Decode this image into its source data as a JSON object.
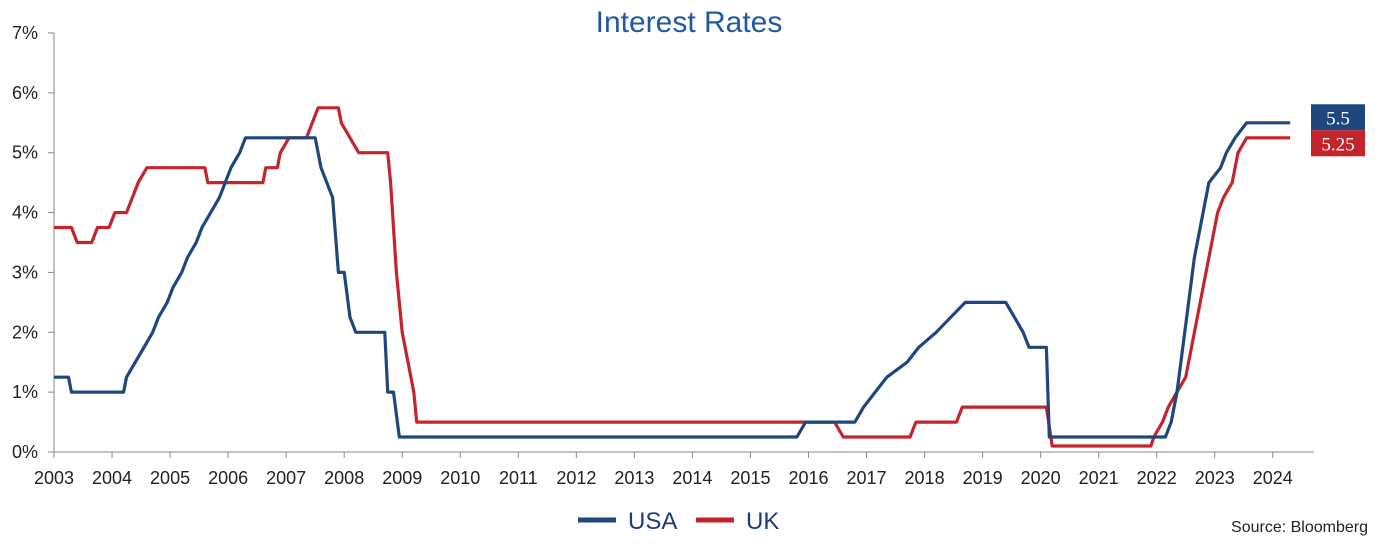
{
  "chart_data": {
    "type": "line",
    "title": "Interest Rates",
    "xlabel": "",
    "ylabel": "",
    "xlim": [
      2003.0,
      2024.4
    ],
    "ylim": [
      0,
      7
    ],
    "y_ticks": [
      0,
      1,
      2,
      3,
      4,
      5,
      6,
      7
    ],
    "y_tick_labels": [
      "0%",
      "1%",
      "2%",
      "3%",
      "4%",
      "5%",
      "6%",
      "7%"
    ],
    "x_ticks": [
      2003,
      2004,
      2005,
      2006,
      2007,
      2008,
      2009,
      2010,
      2011,
      2012,
      2013,
      2014,
      2015,
      2016,
      2017,
      2018,
      2019,
      2020,
      2021,
      2022,
      2023,
      2024
    ],
    "x_tick_labels": [
      "2003",
      "2004",
      "2005",
      "2006",
      "2007",
      "2008",
      "2009",
      "2010",
      "2011",
      "2012",
      "2013",
      "2014",
      "2015",
      "2016",
      "2017",
      "2018",
      "2019",
      "2020",
      "2021",
      "2022",
      "2023",
      "2024"
    ],
    "grid": false,
    "legend_position": "bottom-center",
    "source": "Source: Bloomberg",
    "series": [
      {
        "name": "USA",
        "color": "#1f477d",
        "end_label": "5.5",
        "points": [
          [
            2003.0,
            1.25
          ],
          [
            2003.25,
            1.25
          ],
          [
            2003.3,
            1.0
          ],
          [
            2004.2,
            1.0
          ],
          [
            2004.25,
            1.25
          ],
          [
            2004.4,
            1.5
          ],
          [
            2004.55,
            1.75
          ],
          [
            2004.7,
            2.0
          ],
          [
            2004.8,
            2.25
          ],
          [
            2004.95,
            2.5
          ],
          [
            2005.05,
            2.75
          ],
          [
            2005.2,
            3.0
          ],
          [
            2005.3,
            3.25
          ],
          [
            2005.45,
            3.5
          ],
          [
            2005.55,
            3.75
          ],
          [
            2005.7,
            4.0
          ],
          [
            2005.85,
            4.25
          ],
          [
            2005.95,
            4.5
          ],
          [
            2006.05,
            4.75
          ],
          [
            2006.2,
            5.0
          ],
          [
            2006.3,
            5.25
          ],
          [
            2007.5,
            5.25
          ],
          [
            2007.6,
            4.75
          ],
          [
            2007.7,
            4.5
          ],
          [
            2007.8,
            4.25
          ],
          [
            2007.9,
            3.0
          ],
          [
            2008.0,
            3.0
          ],
          [
            2008.1,
            2.25
          ],
          [
            2008.2,
            2.0
          ],
          [
            2008.7,
            2.0
          ],
          [
            2008.75,
            1.0
          ],
          [
            2008.85,
            1.0
          ],
          [
            2008.95,
            0.25
          ],
          [
            2015.8,
            0.25
          ],
          [
            2015.95,
            0.5
          ],
          [
            2016.8,
            0.5
          ],
          [
            2016.95,
            0.75
          ],
          [
            2017.15,
            1.0
          ],
          [
            2017.35,
            1.25
          ],
          [
            2017.7,
            1.5
          ],
          [
            2017.9,
            1.75
          ],
          [
            2018.2,
            2.0
          ],
          [
            2018.45,
            2.25
          ],
          [
            2018.7,
            2.5
          ],
          [
            2019.4,
            2.5
          ],
          [
            2019.55,
            2.25
          ],
          [
            2019.7,
            2.0
          ],
          [
            2019.8,
            1.75
          ],
          [
            2020.1,
            1.75
          ],
          [
            2020.15,
            0.25
          ],
          [
            2022.15,
            0.25
          ],
          [
            2022.25,
            0.5
          ],
          [
            2022.35,
            1.0
          ],
          [
            2022.45,
            1.75
          ],
          [
            2022.55,
            2.5
          ],
          [
            2022.65,
            3.25
          ],
          [
            2022.8,
            4.0
          ],
          [
            2022.9,
            4.5
          ],
          [
            2023.1,
            4.75
          ],
          [
            2023.2,
            5.0
          ],
          [
            2023.35,
            5.25
          ],
          [
            2023.55,
            5.5
          ],
          [
            2024.3,
            5.5
          ]
        ]
      },
      {
        "name": "UK",
        "color": "#c4252c",
        "end_label": "5.25",
        "points": [
          [
            2003.0,
            3.75
          ],
          [
            2003.3,
            3.75
          ],
          [
            2003.4,
            3.5
          ],
          [
            2003.65,
            3.5
          ],
          [
            2003.75,
            3.75
          ],
          [
            2003.95,
            3.75
          ],
          [
            2004.05,
            4.0
          ],
          [
            2004.25,
            4.0
          ],
          [
            2004.35,
            4.25
          ],
          [
            2004.45,
            4.5
          ],
          [
            2004.6,
            4.75
          ],
          [
            2005.6,
            4.75
          ],
          [
            2005.65,
            4.5
          ],
          [
            2006.6,
            4.5
          ],
          [
            2006.65,
            4.75
          ],
          [
            2006.85,
            4.75
          ],
          [
            2006.9,
            5.0
          ],
          [
            2007.05,
            5.25
          ],
          [
            2007.35,
            5.25
          ],
          [
            2007.45,
            5.5
          ],
          [
            2007.55,
            5.75
          ],
          [
            2007.9,
            5.75
          ],
          [
            2007.95,
            5.5
          ],
          [
            2008.1,
            5.25
          ],
          [
            2008.25,
            5.0
          ],
          [
            2008.75,
            5.0
          ],
          [
            2008.8,
            4.5
          ],
          [
            2008.9,
            3.0
          ],
          [
            2009.0,
            2.0
          ],
          [
            2009.1,
            1.5
          ],
          [
            2009.2,
            1.0
          ],
          [
            2009.25,
            0.5
          ],
          [
            2016.45,
            0.5
          ],
          [
            2016.6,
            0.25
          ],
          [
            2017.75,
            0.25
          ],
          [
            2017.85,
            0.5
          ],
          [
            2018.55,
            0.5
          ],
          [
            2018.65,
            0.75
          ],
          [
            2020.1,
            0.75
          ],
          [
            2020.2,
            0.1
          ],
          [
            2021.9,
            0.1
          ],
          [
            2021.95,
            0.25
          ],
          [
            2022.1,
            0.5
          ],
          [
            2022.2,
            0.75
          ],
          [
            2022.35,
            1.0
          ],
          [
            2022.5,
            1.25
          ],
          [
            2022.6,
            1.75
          ],
          [
            2022.7,
            2.25
          ],
          [
            2022.85,
            3.0
          ],
          [
            2022.95,
            3.5
          ],
          [
            2023.05,
            4.0
          ],
          [
            2023.15,
            4.25
          ],
          [
            2023.3,
            4.5
          ],
          [
            2023.4,
            5.0
          ],
          [
            2023.55,
            5.25
          ],
          [
            2024.3,
            5.25
          ]
        ]
      }
    ]
  }
}
